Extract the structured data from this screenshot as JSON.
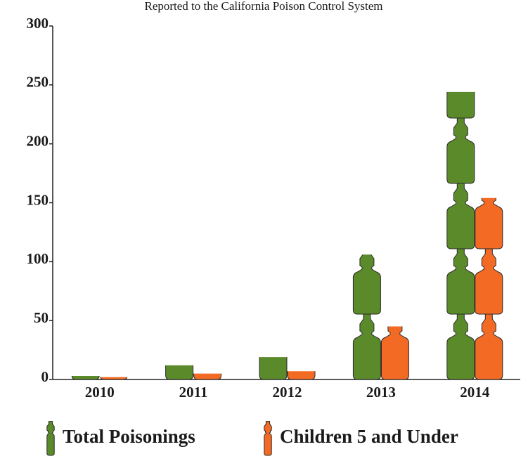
{
  "chart_data": {
    "type": "bar",
    "subtitle": "Reported to the California Poison Control System",
    "categories": [
      "2010",
      "2011",
      "2012",
      "2013",
      "2014"
    ],
    "series": [
      {
        "name": "Total Poisonings",
        "color": "#5b8a2b",
        "values": [
          3,
          12,
          19,
          106,
          244
        ]
      },
      {
        "name": "Children 5 and Under",
        "color": "#f26a24",
        "values": [
          2,
          5,
          7,
          45,
          154
        ]
      }
    ],
    "ylim": [
      0,
      300
    ],
    "yticks": [
      0,
      50,
      100,
      150,
      200,
      250,
      300
    ],
    "legend": "bottom"
  }
}
